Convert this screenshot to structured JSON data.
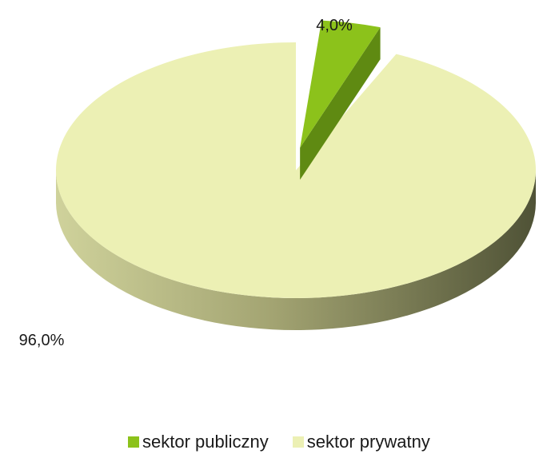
{
  "chart_data": {
    "type": "pie",
    "title": "",
    "labels": [
      "sektor publiczny",
      "sektor prywatny"
    ],
    "values": [
      4.0,
      96.0
    ],
    "data_labels": [
      "4,0%",
      "96,0%"
    ],
    "colors": [
      "#8cc21b",
      "#ecf0b4"
    ],
    "side_colors": [
      "#5f8a12",
      "#8f915f"
    ],
    "exploded": "sektor publiczny",
    "legend_position": "bottom"
  },
  "legend": {
    "items": [
      {
        "label": "sektor publiczny",
        "color": "#8cc21b"
      },
      {
        "label": "sektor prywatny",
        "color": "#ecf0b4"
      }
    ]
  }
}
